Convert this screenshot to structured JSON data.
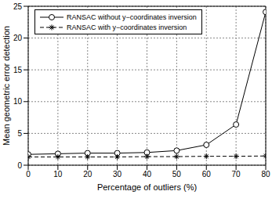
{
  "chart_data": {
    "type": "line",
    "x_label": "Percentage of outliers (%)",
    "y_label": "Mean geometric error detection",
    "x": [
      0,
      10,
      20,
      30,
      40,
      50,
      60,
      70,
      80
    ],
    "series": [
      {
        "name": "RANSAC without y−coordinates inversion",
        "color": "#000000",
        "marker": "circle",
        "line_style": "solid",
        "values": [
          1.7,
          1.8,
          1.9,
          1.9,
          2.0,
          2.3,
          3.2,
          6.4,
          24.1
        ]
      },
      {
        "name": "RANSAC with y−coordinates inversion",
        "color": "#000000",
        "marker": "asterisk",
        "line_style": "dashed",
        "values": [
          1.3,
          1.3,
          1.3,
          1.3,
          1.35,
          1.35,
          1.4,
          1.4,
          1.45
        ]
      }
    ],
    "xlim": [
      0,
      80
    ],
    "ylim": [
      0,
      25
    ],
    "xticks": [
      0,
      10,
      20,
      30,
      40,
      50,
      60,
      70,
      80
    ],
    "yticks": [
      0,
      5,
      10,
      15,
      20,
      25
    ],
    "grid": true,
    "legend": "top-left"
  }
}
